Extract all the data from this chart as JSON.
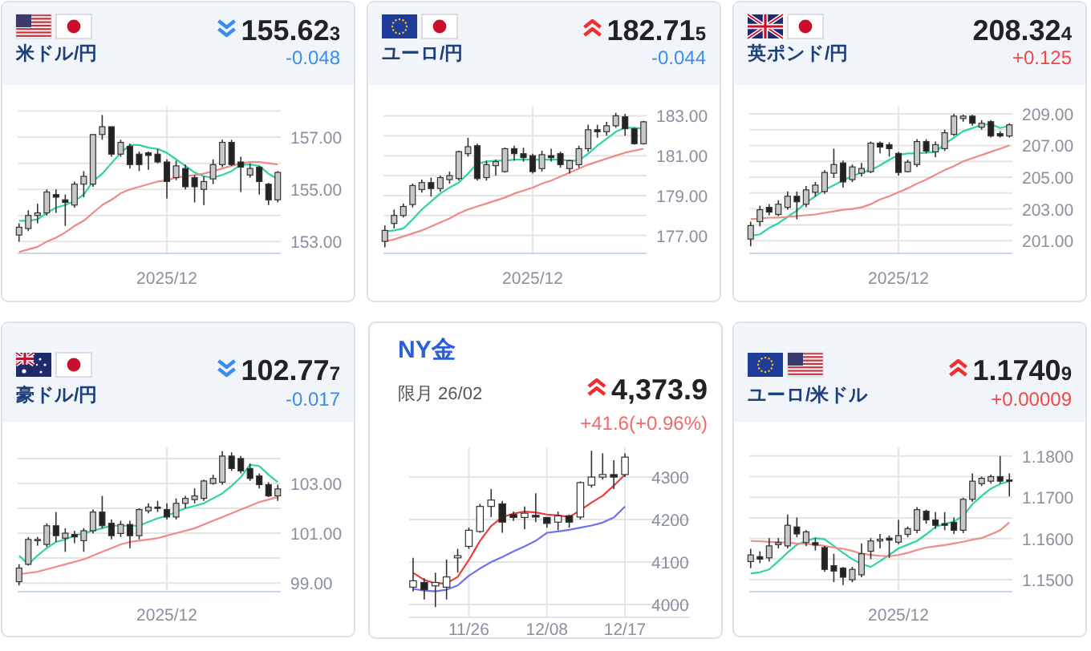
{
  "chart_data": [
    {
      "type": "candlestick",
      "title": "米ドル/円",
      "annotations": [
        "155.623",
        "-0.048"
      ],
      "categories": [
        null,
        null,
        null,
        null,
        null,
        null,
        null,
        null,
        null,
        null,
        null,
        null,
        null,
        null,
        null,
        null,
        "2025/12",
        null,
        null,
        null,
        null,
        null,
        null,
        null,
        null,
        null,
        null,
        null,
        null
      ],
      "ohlc": [
        [
          153.25,
          153.7,
          153.0,
          153.55
        ],
        [
          153.5,
          154.2,
          153.4,
          154.0
        ],
        [
          154.0,
          154.45,
          153.7,
          154.1
        ],
        [
          154.1,
          155.0,
          154.0,
          154.9
        ],
        [
          154.8,
          155.0,
          154.1,
          154.7
        ],
        [
          154.6,
          154.8,
          153.6,
          154.5
        ],
        [
          154.4,
          155.3,
          154.3,
          155.2
        ],
        [
          155.2,
          155.7,
          154.7,
          155.5
        ],
        [
          155.2,
          157.1,
          155.1,
          157.1
        ],
        [
          157.1,
          157.85,
          156.9,
          157.4
        ],
        [
          157.4,
          157.4,
          156.25,
          156.35
        ],
        [
          156.35,
          156.9,
          156.25,
          156.8
        ],
        [
          156.65,
          156.75,
          155.8,
          155.95
        ],
        [
          156.35,
          156.45,
          155.7,
          155.95
        ],
        [
          156.4,
          156.45,
          155.75,
          156.3
        ],
        [
          156.35,
          156.55,
          156.0,
          156.05
        ],
        [
          156.05,
          156.15,
          154.65,
          155.3
        ],
        [
          155.45,
          156.1,
          155.35,
          155.9
        ],
        [
          155.8,
          155.95,
          155.0,
          155.1
        ],
        [
          155.45,
          155.55,
          154.5,
          155.1
        ],
        [
          155.0,
          155.5,
          154.4,
          155.3
        ],
        [
          155.4,
          156.15,
          155.2,
          155.95
        ],
        [
          155.95,
          156.9,
          155.85,
          156.8
        ],
        [
          156.8,
          156.9,
          155.9,
          155.95
        ],
        [
          156.05,
          156.25,
          154.9,
          155.85
        ],
        [
          155.55,
          156.0,
          155.45,
          155.8
        ],
        [
          155.85,
          155.9,
          154.8,
          155.3
        ],
        [
          155.2,
          155.25,
          154.4,
          154.6
        ],
        [
          154.6,
          155.7,
          154.5,
          155.65
        ]
      ],
      "series": [
        {
          "type": "line",
          "color": "#2fd3a4",
          "values": [
            153.8,
            153.8,
            153.85,
            154.1,
            154.3,
            154.4,
            154.55,
            154.8,
            155.3,
            155.6,
            156.0,
            156.4,
            156.7,
            156.7,
            156.6,
            156.55,
            156.4,
            156.15,
            155.9,
            155.65,
            155.5,
            155.45,
            155.55,
            155.7,
            155.95,
            155.95,
            155.9,
            155.6,
            155.4
          ]
        },
        {
          "type": "line",
          "color": "#f08a86",
          "values": [
            152.6,
            152.7,
            152.8,
            153.0,
            153.15,
            153.35,
            153.6,
            153.8,
            154.1,
            154.4,
            154.6,
            154.85,
            155.0,
            155.1,
            155.2,
            155.3,
            155.35,
            155.45,
            155.5,
            155.55,
            155.6,
            155.7,
            155.8,
            155.9,
            156.0,
            156.05,
            156.05,
            156.0,
            155.95
          ]
        }
      ],
      "ylim": [
        152.55,
        158.2
      ],
      "yticks": [
        {
          "value": 153,
          "label": "153.00"
        },
        {
          "value": 154,
          "label": null
        },
        {
          "value": 155,
          "label": "155.00"
        },
        {
          "value": 156,
          "label": null
        },
        {
          "value": 157,
          "label": "157.00"
        },
        {
          "value": 158,
          "label": null
        }
      ],
      "grid": true
    },
    {
      "type": "candlestick",
      "title": "ユーロ/円",
      "annotations": [
        "182.715",
        "-0.044"
      ],
      "categories": [
        null,
        null,
        null,
        null,
        null,
        null,
        null,
        null,
        null,
        null,
        null,
        null,
        null,
        null,
        null,
        null,
        "2025/12",
        null,
        null,
        null,
        null,
        null,
        null,
        null,
        null,
        null,
        null,
        null,
        null
      ],
      "ohlc": [
        [
          176.7,
          177.5,
          176.4,
          177.25
        ],
        [
          177.6,
          178.3,
          177.35,
          178.0
        ],
        [
          178.0,
          178.6,
          177.9,
          178.45
        ],
        [
          178.55,
          179.6,
          178.4,
          179.5
        ],
        [
          179.3,
          179.8,
          179.15,
          179.65
        ],
        [
          179.65,
          179.9,
          178.95,
          179.35
        ],
        [
          179.35,
          180.0,
          179.2,
          179.9
        ],
        [
          179.8,
          180.2,
          179.6,
          180.0
        ],
        [
          179.85,
          181.25,
          179.75,
          181.2
        ],
        [
          181.1,
          181.9,
          180.95,
          181.45
        ],
        [
          181.5,
          181.6,
          179.75,
          179.85
        ],
        [
          179.9,
          180.75,
          179.75,
          180.55
        ],
        [
          180.5,
          180.8,
          180.0,
          180.7
        ],
        [
          180.2,
          181.4,
          180.15,
          181.35
        ],
        [
          181.35,
          181.5,
          180.75,
          181.1
        ],
        [
          181.1,
          181.4,
          180.7,
          180.9
        ],
        [
          181.0,
          181.1,
          180.1,
          180.2
        ],
        [
          180.35,
          181.25,
          180.2,
          181.05
        ],
        [
          181.0,
          181.35,
          180.7,
          180.9
        ],
        [
          181.1,
          181.2,
          180.4,
          180.55
        ],
        [
          180.35,
          180.8,
          180.1,
          180.75
        ],
        [
          180.55,
          181.5,
          180.4,
          181.35
        ],
        [
          181.35,
          182.55,
          181.2,
          182.3
        ],
        [
          182.3,
          182.55,
          181.9,
          182.2
        ],
        [
          182.2,
          182.7,
          182.0,
          182.5
        ],
        [
          182.5,
          183.15,
          182.4,
          183.0
        ],
        [
          182.95,
          183.1,
          182.0,
          182.35
        ],
        [
          182.35,
          182.4,
          181.55,
          181.6
        ],
        [
          181.6,
          182.75,
          181.55,
          182.7
        ]
      ],
      "series": [
        {
          "type": "line",
          "color": "#2fd3a4",
          "values": [
            177.2,
            177.25,
            177.35,
            177.8,
            178.3,
            178.7,
            179.1,
            179.4,
            179.65,
            180.1,
            180.6,
            180.7,
            180.75,
            180.75,
            180.8,
            180.8,
            180.8,
            180.8,
            180.8,
            180.8,
            180.75,
            180.75,
            181.1,
            181.5,
            181.85,
            182.2,
            182.4,
            182.4,
            182.35
          ]
        },
        {
          "type": "line",
          "color": "#f08a86",
          "values": [
            176.7,
            176.8,
            176.95,
            177.1,
            177.25,
            177.45,
            177.65,
            177.85,
            178.1,
            178.3,
            178.45,
            178.6,
            178.75,
            178.9,
            179.1,
            179.25,
            179.4,
            179.6,
            179.75,
            179.95,
            180.15,
            180.35,
            180.55,
            180.7,
            180.85,
            181.0,
            181.15,
            181.25,
            181.35
          ]
        }
      ],
      "ylim": [
        176.1,
        183.5
      ],
      "yticks": [
        {
          "value": 177,
          "label": "177.00"
        },
        {
          "value": 178,
          "label": null
        },
        {
          "value": 179,
          "label": "179.00"
        },
        {
          "value": 180,
          "label": null
        },
        {
          "value": 181,
          "label": "181.00"
        },
        {
          "value": 182,
          "label": null
        },
        {
          "value": 183,
          "label": "183.00"
        }
      ],
      "grid": true
    },
    {
      "type": "candlestick",
      "title": "英ポンド/円",
      "annotations": [
        "208.324",
        "+0.125"
      ],
      "categories": [
        null,
        null,
        null,
        null,
        null,
        null,
        null,
        null,
        null,
        null,
        null,
        null,
        null,
        null,
        null,
        null,
        "2025/12",
        null,
        null,
        null,
        null,
        null,
        null,
        null,
        null,
        null,
        null,
        null,
        null
      ],
      "ohlc": [
        [
          201.1,
          202.2,
          200.65,
          201.95
        ],
        [
          202.2,
          203.2,
          201.9,
          202.95
        ],
        [
          203.1,
          203.3,
          202.6,
          202.8
        ],
        [
          202.65,
          203.55,
          202.55,
          203.3
        ],
        [
          203.1,
          204.1,
          202.95,
          203.8
        ],
        [
          203.8,
          204.1,
          202.35,
          203.45
        ],
        [
          203.3,
          204.45,
          203.1,
          204.2
        ],
        [
          204.05,
          204.7,
          203.8,
          204.5
        ],
        [
          204.1,
          205.45,
          203.95,
          205.3
        ],
        [
          205.25,
          206.8,
          204.95,
          205.8
        ],
        [
          205.9,
          206.05,
          204.35,
          204.7
        ],
        [
          204.85,
          205.8,
          204.7,
          205.65
        ],
        [
          205.25,
          205.9,
          205.05,
          205.55
        ],
        [
          205.35,
          207.25,
          205.25,
          207.15
        ],
        [
          207.15,
          207.25,
          206.5,
          206.9
        ],
        [
          207.05,
          207.2,
          206.3,
          206.8
        ],
        [
          206.5,
          206.6,
          205.1,
          205.3
        ],
        [
          205.35,
          206.1,
          205.3,
          205.95
        ],
        [
          205.8,
          207.4,
          205.65,
          207.25
        ],
        [
          207.25,
          207.4,
          206.5,
          206.65
        ],
        [
          206.6,
          207.25,
          206.25,
          207.05
        ],
        [
          206.8,
          208.0,
          206.65,
          207.8
        ],
        [
          207.7,
          209.0,
          207.6,
          208.85
        ],
        [
          208.7,
          208.95,
          208.5,
          208.85
        ],
        [
          208.85,
          208.95,
          208.25,
          208.4
        ],
        [
          208.15,
          208.6,
          208.0,
          208.4
        ],
        [
          208.5,
          208.6,
          207.5,
          207.6
        ],
        [
          207.75,
          207.9,
          207.5,
          207.6
        ],
        [
          207.6,
          208.4,
          207.5,
          208.3
        ]
      ],
      "series": [
        {
          "type": "line",
          "color": "#2fd3a4",
          "values": [
            201.3,
            201.4,
            201.8,
            202.1,
            202.5,
            202.9,
            203.4,
            203.8,
            204.2,
            204.5,
            204.8,
            205.05,
            205.3,
            205.45,
            205.75,
            206.1,
            206.4,
            206.5,
            206.5,
            206.55,
            206.6,
            207.1,
            207.5,
            207.9,
            208.1,
            208.3,
            208.35,
            208.1,
            208.25
          ]
        },
        {
          "type": "line",
          "color": "#f08a86",
          "values": [
            202.35,
            202.4,
            202.45,
            202.45,
            202.5,
            202.55,
            202.6,
            202.65,
            202.75,
            202.85,
            202.95,
            203.0,
            203.1,
            203.3,
            203.6,
            203.8,
            204.05,
            204.3,
            204.6,
            204.85,
            205.15,
            205.45,
            205.7,
            206.0,
            206.2,
            206.4,
            206.6,
            206.8,
            207.0
          ]
        }
      ],
      "ylim": [
        200.2,
        209.5
      ],
      "yticks": [
        {
          "value": 201,
          "label": "201.00"
        },
        {
          "value": 202,
          "label": null
        },
        {
          "value": 203,
          "label": "203.00"
        },
        {
          "value": 204,
          "label": null
        },
        {
          "value": 205,
          "label": "205.00"
        },
        {
          "value": 206,
          "label": null
        },
        {
          "value": 207,
          "label": "207.00"
        },
        {
          "value": 208,
          "label": null
        },
        {
          "value": 209,
          "label": "209.00"
        }
      ],
      "grid": true
    },
    {
      "type": "candlestick",
      "title": "豪ドル/円",
      "annotations": [
        "102.777",
        "-0.017"
      ],
      "categories": [
        null,
        null,
        null,
        null,
        null,
        null,
        null,
        null,
        null,
        null,
        null,
        null,
        null,
        null,
        null,
        null,
        "2025/12",
        null,
        null,
        null,
        null,
        null,
        null,
        null,
        null,
        null,
        null,
        null,
        null
      ],
      "ohlc": [
        [
          99.05,
          99.75,
          98.9,
          99.6
        ],
        [
          99.75,
          100.85,
          99.7,
          100.75
        ],
        [
          100.7,
          100.85,
          100.5,
          100.75
        ],
        [
          100.55,
          101.4,
          100.45,
          101.3
        ],
        [
          101.3,
          101.85,
          100.65,
          100.9
        ],
        [
          100.8,
          101.2,
          100.25,
          101.0
        ],
        [
          100.95,
          101.1,
          100.6,
          100.85
        ],
        [
          100.7,
          101.2,
          100.25,
          101.1
        ],
        [
          101.1,
          101.95,
          100.99,
          101.85
        ],
        [
          101.85,
          102.5,
          101.2,
          101.3
        ],
        [
          101.4,
          101.55,
          100.75,
          100.9
        ],
        [
          100.99,
          101.5,
          100.85,
          101.35
        ],
        [
          101.35,
          101.5,
          100.4,
          100.9
        ],
        [
          100.9,
          102.0,
          100.75,
          101.95
        ],
        [
          101.9,
          102.2,
          101.8,
          102.05
        ],
        [
          102.05,
          102.3,
          101.85,
          102.0
        ],
        [
          101.95,
          102.2,
          101.55,
          101.65
        ],
        [
          101.65,
          102.4,
          101.55,
          102.2
        ],
        [
          102.2,
          102.5,
          102.0,
          102.4
        ],
        [
          102.35,
          102.8,
          102.2,
          102.5
        ],
        [
          102.4,
          103.15,
          102.3,
          103.1
        ],
        [
          103.0,
          103.35,
          102.95,
          103.2
        ],
        [
          103.05,
          104.3,
          102.95,
          104.1
        ],
        [
          104.1,
          104.25,
          103.5,
          103.6
        ],
        [
          104.0,
          104.1,
          103.4,
          103.5
        ],
        [
          103.6,
          103.8,
          103.1,
          103.2
        ],
        [
          103.3,
          103.4,
          102.8,
          102.95
        ],
        [
          102.95,
          103.05,
          102.45,
          102.5
        ],
        [
          102.5,
          102.95,
          102.3,
          102.78
        ]
      ],
      "series": [
        {
          "type": "line",
          "color": "#2fd3a4",
          "values": [
            100.1,
            99.75,
            100.1,
            100.4,
            100.65,
            100.75,
            100.9,
            101.0,
            101.1,
            101.2,
            101.3,
            101.3,
            101.3,
            101.3,
            101.45,
            101.6,
            101.7,
            101.85,
            102.0,
            102.1,
            102.2,
            102.4,
            102.6,
            102.9,
            103.25,
            103.75,
            103.7,
            103.35,
            103.05
          ]
        },
        {
          "type": "line",
          "color": "#f08a86",
          "values": [
            99.35,
            99.4,
            99.45,
            99.55,
            99.65,
            99.75,
            99.85,
            99.95,
            100.1,
            100.25,
            100.4,
            100.55,
            100.65,
            100.7,
            100.75,
            100.8,
            100.9,
            101.0,
            101.1,
            101.2,
            101.35,
            101.5,
            101.65,
            101.8,
            101.95,
            102.1,
            102.25,
            102.35,
            102.45
          ]
        }
      ],
      "ylim": [
        98.65,
        104.45
      ],
      "yticks": [
        {
          "value": 99,
          "label": "99.00"
        },
        {
          "value": 100,
          "label": null
        },
        {
          "value": 101,
          "label": "101.00"
        },
        {
          "value": 102,
          "label": null
        },
        {
          "value": 103,
          "label": "103.00"
        },
        {
          "value": 104,
          "label": null
        }
      ],
      "grid": true
    },
    {
      "type": "candlestick",
      "title": "NY金",
      "subtitle": "限月 26/02",
      "annotations": [
        "4,373.9",
        "+41.6(+0.96%)"
      ],
      "categories": [
        null,
        null,
        null,
        null,
        null,
        "11/26",
        null,
        null,
        null,
        null,
        null,
        null,
        "12/08",
        null,
        null,
        null,
        null,
        null,
        null,
        "12/17"
      ],
      "ohlc": [
        [
          4041,
          4110,
          4031,
          4056
        ],
        [
          4052,
          4062,
          4012,
          4035
        ],
        [
          4044,
          4075,
          3994,
          4052
        ],
        [
          4041,
          4106,
          4012,
          4065
        ],
        [
          4110,
          4131,
          4075,
          4115
        ],
        [
          4137,
          4181,
          4131,
          4175
        ],
        [
          4172,
          4237,
          4169,
          4231
        ],
        [
          4231,
          4272,
          4206,
          4246
        ],
        [
          4237,
          4244,
          4169,
          4194
        ],
        [
          4212,
          4219,
          4197,
          4205
        ],
        [
          4205,
          4231,
          4177,
          4215
        ],
        [
          4210,
          4262,
          4194,
          4206
        ],
        [
          4205,
          4206,
          4181,
          4191
        ],
        [
          4194,
          4219,
          4175,
          4209
        ],
        [
          4209,
          4212,
          4181,
          4194
        ],
        [
          4206,
          4290,
          4200,
          4287
        ],
        [
          4281,
          4362,
          4275,
          4300
        ],
        [
          4300,
          4356,
          4294,
          4306
        ],
        [
          4306,
          4340,
          4272,
          4300
        ],
        [
          4306,
          4356,
          4300,
          4347
        ]
      ],
      "series": [
        {
          "type": "line",
          "color": "#ee3b3b",
          "values": [
            4075,
            4058,
            4050,
            4050,
            4065,
            4105,
            4150,
            4185,
            4206,
            4214,
            4219,
            4217,
            4212,
            4210,
            4206,
            4222,
            4240,
            4256,
            4280,
            4306
          ]
        },
        {
          "type": "line",
          "color": "#6f6ff0",
          "values": [
            4037,
            4033,
            4031,
            4035,
            4045,
            4068,
            4085,
            4100,
            4112,
            4125,
            4137,
            4150,
            4169,
            4172,
            4176,
            4181,
            4186,
            4193,
            4205,
            4231
          ]
        }
      ],
      "ylim": [
        3970,
        4370
      ],
      "yticks": [
        4000,
        4100,
        4200,
        4300
      ],
      "grid": true
    },
    {
      "type": "candlestick",
      "title": "ユーロ/米ドル",
      "annotations": [
        "1.17409",
        "+0.00009"
      ],
      "categories": [
        null,
        null,
        null,
        null,
        null,
        null,
        null,
        null,
        null,
        null,
        null,
        null,
        null,
        null,
        null,
        null,
        "2025/12",
        null,
        null,
        null,
        null,
        null,
        null,
        null,
        null,
        null,
        null,
        null,
        null
      ],
      "ohlc": [
        [
          1.1544,
          1.1575,
          1.1528,
          1.156
        ],
        [
          1.1556,
          1.1569,
          1.154,
          1.155
        ],
        [
          1.1553,
          1.1601,
          1.1544,
          1.1582
        ],
        [
          1.1585,
          1.1601,
          1.1576,
          1.159
        ],
        [
          1.1582,
          1.1658,
          1.1576,
          1.1632
        ],
        [
          1.1628,
          1.1651,
          1.1603,
          1.1611
        ],
        [
          1.159,
          1.162,
          1.1582,
          1.1616
        ],
        [
          1.159,
          1.1601,
          1.1571,
          1.1584
        ],
        [
          1.1578,
          1.1582,
          1.1519,
          1.1525
        ],
        [
          1.1534,
          1.1563,
          1.1494,
          1.1521
        ],
        [
          1.1528,
          1.1531,
          1.1487,
          1.1506
        ],
        [
          1.15,
          1.1531,
          1.1494,
          1.1525
        ],
        [
          1.1512,
          1.1588,
          1.1506,
          1.1563
        ],
        [
          1.1569,
          1.1601,
          1.155,
          1.1594
        ],
        [
          1.1594,
          1.1611,
          1.1576,
          1.1598
        ],
        [
          1.1601,
          1.1607,
          1.1553,
          1.1596
        ],
        [
          1.1591,
          1.1645,
          1.1586,
          1.1607
        ],
        [
          1.161,
          1.1629,
          1.1603,
          1.1624
        ],
        [
          1.162,
          1.1676,
          1.1613,
          1.167
        ],
        [
          1.1666,
          1.167,
          1.1636,
          1.1645
        ],
        [
          1.1645,
          1.1664,
          1.1623,
          1.1632
        ],
        [
          1.1636,
          1.1664,
          1.162,
          1.1632
        ],
        [
          1.1639,
          1.1651,
          1.1611,
          1.162
        ],
        [
          1.162,
          1.1699,
          1.1613,
          1.1695
        ],
        [
          1.1695,
          1.1758,
          1.1689,
          1.1739
        ],
        [
          1.1733,
          1.175,
          1.1727,
          1.1746
        ],
        [
          1.1739,
          1.1755,
          1.1733,
          1.175
        ],
        [
          1.175,
          1.18,
          1.1733,
          1.1739
        ],
        [
          1.1742,
          1.1758,
          1.1702,
          1.1741
        ]
      ],
      "series": [
        {
          "type": "line",
          "color": "#2fd3a4",
          "values": [
            1.1515,
            1.1518,
            1.1525,
            1.1545,
            1.1566,
            1.1585,
            1.1594,
            1.1601,
            1.1598,
            1.1582,
            1.1565,
            1.155,
            1.1538,
            1.1531,
            1.1545,
            1.156,
            1.1576,
            1.1585,
            1.1594,
            1.161,
            1.1628,
            1.1635,
            1.1641,
            1.1655,
            1.1683,
            1.1703,
            1.1721,
            1.1732,
            1.1739
          ]
        },
        {
          "type": "line",
          "color": "#f08a86",
          "values": [
            1.1594,
            1.1593,
            1.1592,
            1.1591,
            1.159,
            1.1588,
            1.1587,
            1.1585,
            1.1582,
            1.1578,
            1.1575,
            1.157,
            1.1563,
            1.156,
            1.1558,
            1.1557,
            1.156,
            1.1565,
            1.1572,
            1.1578,
            1.1581,
            1.1584,
            1.1588,
            1.1592,
            1.1597,
            1.1601,
            1.161,
            1.162,
            1.1639
          ]
        }
      ],
      "ylim": [
        1.1471,
        1.1821
      ],
      "yticks": [
        {
          "value": 1.15,
          "label": "1.1500"
        },
        {
          "value": 1.155,
          "label": null
        },
        {
          "value": 1.16,
          "label": "1.1600"
        },
        {
          "value": 1.165,
          "label": null
        },
        {
          "value": 1.17,
          "label": "1.1700"
        },
        {
          "value": 1.175,
          "label": null
        },
        {
          "value": 1.18,
          "label": "1.1800"
        }
      ],
      "grid": true
    }
  ]
}
